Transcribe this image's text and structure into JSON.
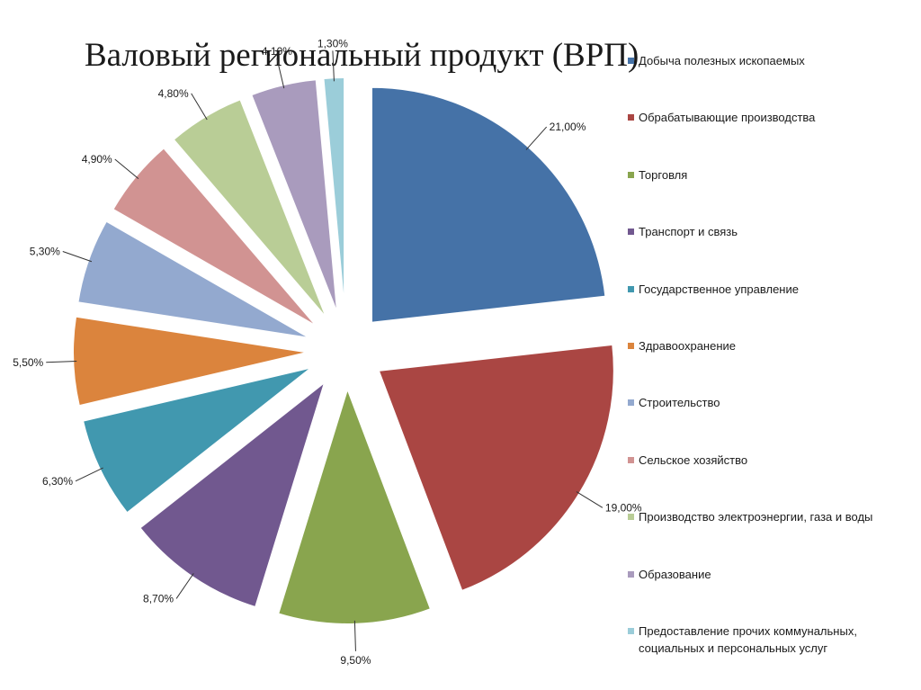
{
  "chart_data": {
    "type": "pie",
    "title": "Валовый региональный продукт (ВРП)",
    "legend_position": "right",
    "slices": [
      {
        "name": "Добыча полезных ископаемых",
        "value": 21.0,
        "label": "21,00%",
        "color": "#4572A7"
      },
      {
        "name": "Обрабатывающие производства",
        "value": 19.0,
        "label": "19,00%",
        "color": "#AA4643"
      },
      {
        "name": "Торговля",
        "value": 9.5,
        "label": "9,50%",
        "color": "#89A54E"
      },
      {
        "name": "Транспорт и связь",
        "value": 8.7,
        "label": "8,70%",
        "color": "#71588F"
      },
      {
        "name": "Государственное управление",
        "value": 6.3,
        "label": "6,30%",
        "color": "#4198AF"
      },
      {
        "name": "Здравоохранение",
        "value": 5.5,
        "label": "5,50%",
        "color": "#DB843D"
      },
      {
        "name": "Строительство",
        "value": 5.3,
        "label": "5,30%",
        "color": "#93A9CF"
      },
      {
        "name": "Сельское хозяйство",
        "value": 4.9,
        "label": "4,90%",
        "color": "#D19392"
      },
      {
        "name": "Производство электроэнергии, газа и воды",
        "value": 4.8,
        "label": "4,80%",
        "color": "#B9CD96"
      },
      {
        "name": "Образование",
        "value": 4.1,
        "label": "4,10%",
        "color": "#A99BBD"
      },
      {
        "name": "Предоставление прочих коммунальных, социальных и персональных услуг",
        "value": 1.3,
        "label": "1,30%",
        "color": "#9BCDD9"
      }
    ]
  }
}
